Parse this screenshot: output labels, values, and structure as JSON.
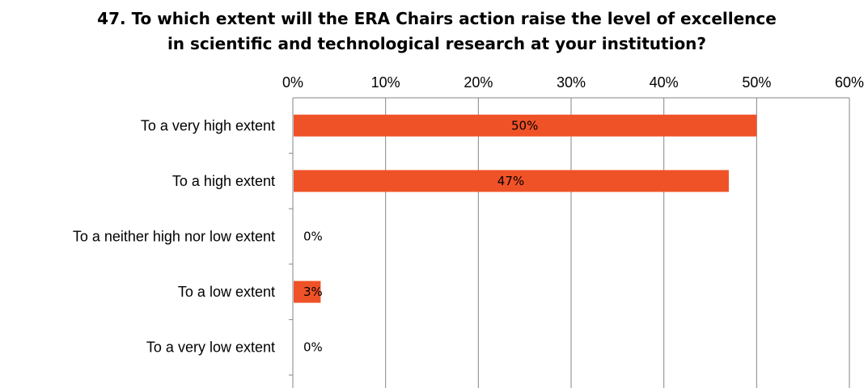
{
  "chart_data": {
    "type": "bar",
    "orientation": "horizontal",
    "title": "47. To which extent will the ERA Chairs action raise the level of excellence in scientific and technological research at your institution?",
    "title_lines": [
      "47. To which extent will the ERA Chairs action raise the level of excellence",
      "in scientific and technological research at your institution?"
    ],
    "categories": [
      "To a very high extent",
      "To a high extent",
      "To a neither high nor low extent",
      "To a low extent",
      "To a very low extent"
    ],
    "values": [
      50,
      47,
      0,
      3,
      0
    ],
    "data_labels": [
      "50%",
      "47%",
      "0%",
      "3%",
      "0%"
    ],
    "xlim": [
      0,
      60
    ],
    "x_ticks": [
      0,
      10,
      20,
      30,
      40,
      50,
      60
    ],
    "x_tick_labels": [
      "0%",
      "10%",
      "20%",
      "30%",
      "40%",
      "50%",
      "60%"
    ],
    "axis_position": "top",
    "grid": true,
    "legend": "none",
    "bar_color": "#f05227",
    "grid_color": "#868686"
  }
}
